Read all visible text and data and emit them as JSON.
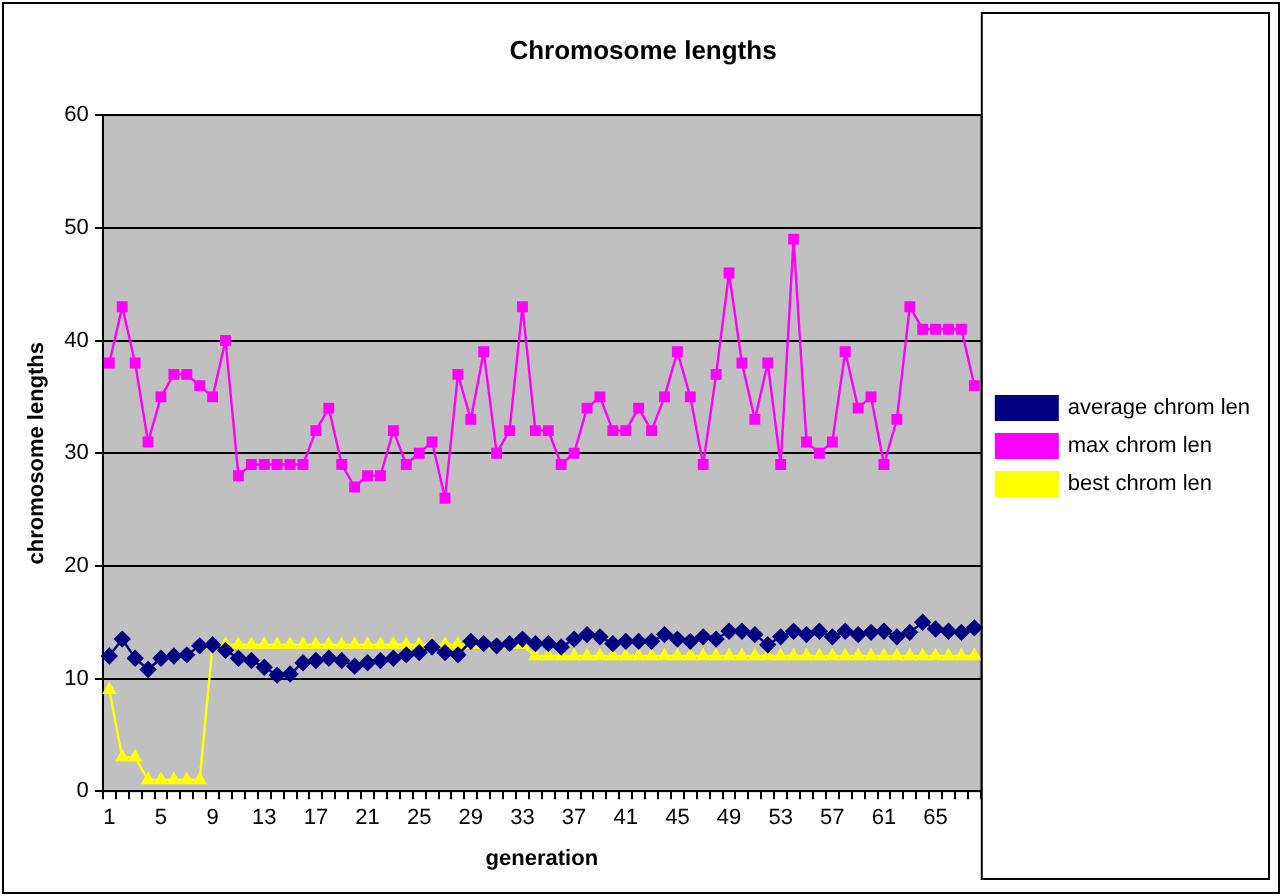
{
  "chart_data": {
    "type": "line",
    "title": "Chromosome lengths",
    "xlabel": "generation",
    "ylabel": "chromosome lengths",
    "categories": [
      "1",
      null,
      null,
      null,
      "5",
      null,
      null,
      null,
      "9",
      null,
      null,
      null,
      "13",
      null,
      null,
      null,
      "17",
      null,
      null,
      null,
      "21",
      null,
      null,
      null,
      "25",
      null,
      null,
      null,
      "29",
      null,
      null,
      null,
      "33",
      null,
      null,
      null,
      "37",
      null,
      null,
      null,
      "41",
      null,
      null,
      null,
      "45",
      null,
      null,
      null,
      "49",
      null,
      null,
      null,
      "53",
      null,
      null,
      null,
      "57",
      null,
      null,
      null,
      "61",
      null,
      null,
      null,
      "65",
      null,
      null,
      null
    ],
    "series": [
      {
        "name": "average chrom len",
        "color": "#000080",
        "marker": "diamond",
        "values": [
          12,
          13.5,
          11.8,
          10.8,
          11.8,
          12,
          12.1,
          12.9,
          13,
          12.5,
          11.8,
          11.6,
          11,
          10.3,
          10.4,
          11.4,
          11.6,
          11.8,
          11.6,
          11.1,
          11.4,
          11.6,
          11.8,
          12.1,
          12.3,
          12.8,
          12.3,
          12.1,
          13.3,
          13.1,
          12.9,
          13.1,
          13.5,
          13.1,
          13.1,
          12.8,
          13.5,
          13.9,
          13.7,
          13.1,
          13.3,
          13.3,
          13.3,
          13.9,
          13.5,
          13.3,
          13.7,
          13.5,
          14.2,
          14.2,
          13.9,
          13,
          13.7,
          14.2,
          13.9,
          14.2,
          13.7,
          14.2,
          13.9,
          14.1,
          14.2,
          13.7,
          14.1,
          15,
          14.4,
          14.2,
          14.1,
          14.5
        ]
      },
      {
        "name": "max chrom len",
        "color": "#ff00ff",
        "marker": "square",
        "values": [
          38,
          43,
          38,
          31,
          35,
          37,
          37,
          36,
          35,
          40,
          28,
          29,
          29,
          29,
          29,
          29,
          32,
          34,
          29,
          27,
          28,
          28,
          32,
          29,
          30,
          31,
          26,
          37,
          33,
          39,
          30,
          32,
          43,
          32,
          32,
          29,
          30,
          34,
          35,
          32,
          32,
          34,
          32,
          35,
          39,
          35,
          29,
          37,
          46,
          38,
          33,
          38,
          29,
          49,
          31,
          30,
          31,
          39,
          34,
          35,
          29,
          33,
          43,
          41,
          41,
          41,
          41,
          36
        ]
      },
      {
        "name": "best chrom len",
        "color": "#ffff00",
        "marker": "triangle",
        "values": [
          9,
          3,
          3,
          1,
          1,
          1,
          1,
          1,
          13,
          13,
          13,
          13,
          13,
          13,
          13,
          13,
          13,
          13,
          13,
          13,
          13,
          13,
          13,
          13,
          13,
          13,
          13,
          13,
          13,
          13,
          13,
          13,
          13,
          12,
          12,
          12,
          12,
          12,
          12,
          12,
          12,
          12,
          12,
          12,
          12,
          12,
          12,
          12,
          12,
          12,
          12,
          12,
          12,
          12,
          12,
          12,
          12,
          12,
          12,
          12,
          12,
          12,
          12,
          12,
          12,
          12,
          12,
          12
        ]
      }
    ],
    "ylim": [
      0,
      60
    ],
    "yticks": [
      0,
      10,
      20,
      30,
      40,
      50,
      60
    ],
    "grid": "y",
    "legend": "right"
  }
}
